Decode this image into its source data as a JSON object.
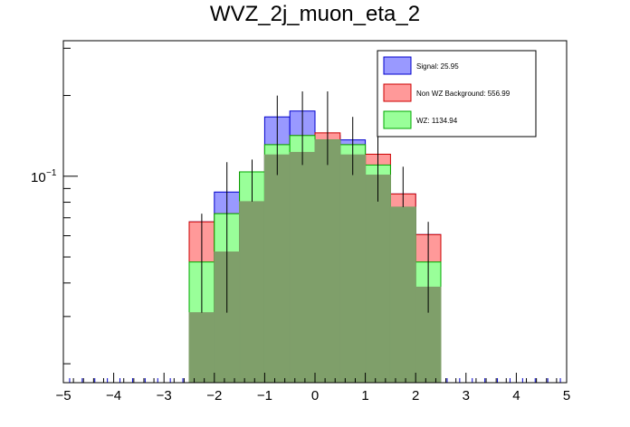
{
  "chart_data": {
    "type": "bar",
    "title": "WVZ_2j_muon_eta_2",
    "xlabel": "",
    "ylabel": "",
    "y_log_scale": true,
    "xlim": [
      -5,
      5
    ],
    "ylim": [
      0.017,
      0.32
    ],
    "x_ticks": [
      "−5",
      "−4",
      "−3",
      "−2",
      "−1",
      "0",
      "1",
      "2",
      "3",
      "4",
      "5"
    ],
    "y_tick_label": "10",
    "y_tick_exponent": "−1",
    "legend_position": "top-right",
    "bin_edges": [
      -2.5,
      -2.0,
      -1.5,
      -1.0,
      -0.5,
      0.0,
      0.5,
      1.0,
      1.5,
      2.0,
      2.5
    ],
    "series": [
      {
        "name": "Signal: 25.95",
        "color": "#9999ff",
        "stroke": "#0000cc",
        "values": [
          0.0676,
          0.0873,
          0.1038,
          0.1664,
          0.175,
          0.1418,
          0.1366,
          0.101,
          0.0859,
          0.0606
        ]
      },
      {
        "name": "Non WZ Background: 556.99",
        "color": "#ff9999",
        "stroke": "#cc0000",
        "values": [
          0.0676,
          0.0725,
          0.1038,
          0.1311,
          0.1418,
          0.1451,
          0.1311,
          0.1208,
          0.0859,
          0.0606
        ]
      },
      {
        "name": "WZ: 1134.94",
        "color": "#99ff99",
        "stroke": "#00aa00",
        "values": [
          0.0479,
          0.0725,
          0.1038,
          0.1311,
          0.1418,
          0.1366,
          0.1311,
          0.1101,
          0.0767,
          0.0479
        ]
      }
    ],
    "overlap_values": [
      0.031,
      0.0522,
      0.0804,
      0.1201,
      0.1227,
      0.1366,
      0.1201,
      0.101,
      0.0767,
      0.0386
    ],
    "error_bars": {
      "center": [
        0.0479,
        0.0725,
        0.1038,
        0.1311,
        0.1418,
        0.1418,
        0.1311,
        0.1101,
        0.0859,
        0.0479
      ],
      "upper": [
        0.0725,
        0.1128,
        0.1154,
        0.1998,
        0.2071,
        0.2071,
        0.1664,
        0.1442,
        0.1085,
        0.0676
      ],
      "lower": [
        0.031,
        0.031,
        0.0804,
        0.101,
        0.1101,
        0.1101,
        0.101,
        0.0804,
        0.0767,
        0.031
      ]
    }
  },
  "colors": {
    "overlap": "#7f9f6a",
    "frame": "#000000",
    "underflow_marks": "#0000cc"
  }
}
